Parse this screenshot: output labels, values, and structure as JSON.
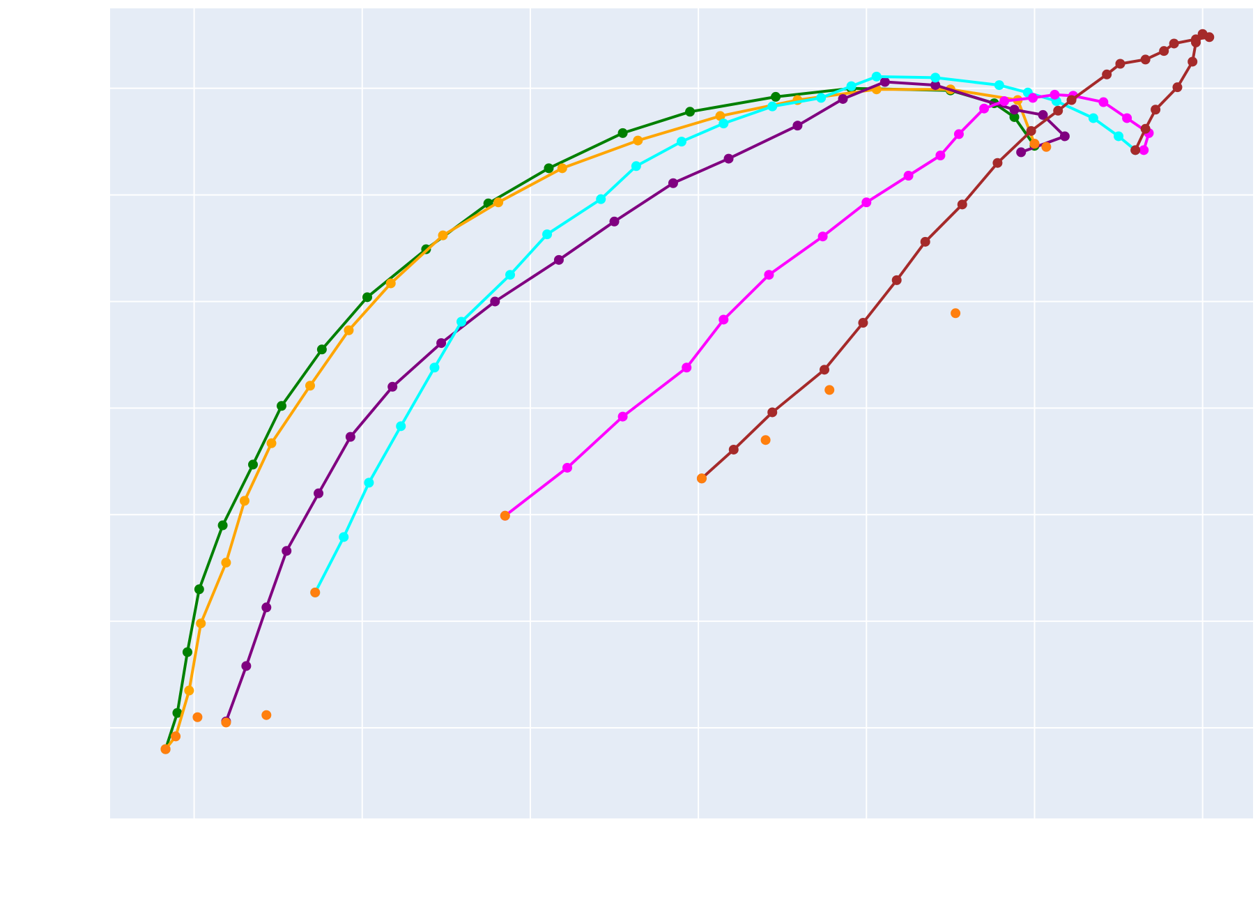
{
  "chart_data": {
    "type": "line",
    "title": "",
    "xlabel": "",
    "ylabel": "",
    "xlim": [
      -0.5,
      6.3
    ],
    "ylim": [
      -0.85,
      6.75
    ],
    "grid": true,
    "background_color": "#e5ecf6",
    "grid_color": "#ffffff",
    "series": [
      {
        "color": "#008000",
        "x": [
          -0.17,
          -0.1,
          -0.04,
          0.03,
          0.17,
          0.35,
          0.52,
          0.76,
          1.03,
          1.38,
          1.75,
          2.11,
          2.55,
          2.95,
          3.46,
          3.91,
          4.5,
          4.76,
          4.88,
          5.0
        ],
        "y": [
          -0.2,
          0.14,
          0.71,
          1.3,
          1.9,
          2.47,
          3.02,
          3.55,
          4.04,
          4.49,
          4.92,
          5.25,
          5.58,
          5.78,
          5.92,
          6.0,
          5.98,
          5.86,
          5.73,
          5.46
        ]
      },
      {
        "color": "#ffa500",
        "x": [
          -0.17,
          -0.11,
          -0.03,
          0.04,
          0.19,
          0.3,
          0.46,
          0.69,
          0.92,
          1.17,
          1.48,
          1.81,
          2.19,
          2.64,
          3.13,
          3.59,
          4.06,
          4.5,
          4.9,
          5.0
        ],
        "y": [
          -0.2,
          -0.08,
          0.35,
          0.98,
          1.55,
          2.13,
          2.67,
          3.21,
          3.73,
          4.17,
          4.62,
          4.93,
          5.25,
          5.51,
          5.74,
          5.89,
          5.99,
          5.99,
          5.89,
          5.48
        ]
      },
      {
        "color": "#800080",
        "x": [
          0.19,
          0.31,
          0.43,
          0.55,
          0.74,
          0.93,
          1.18,
          1.47,
          1.79,
          2.17,
          2.5,
          2.85,
          3.18,
          3.59,
          3.86,
          4.11,
          4.41,
          4.88,
          5.05,
          5.18,
          4.92
        ],
        "y": [
          0.06,
          0.58,
          1.13,
          1.66,
          2.2,
          2.73,
          3.2,
          3.61,
          4.0,
          4.39,
          4.75,
          5.11,
          5.34,
          5.65,
          5.9,
          6.06,
          6.03,
          5.8,
          5.75,
          5.55,
          5.4
        ]
      },
      {
        "color": "#00ffff",
        "x": [
          0.72,
          0.89,
          1.04,
          1.23,
          1.43,
          1.59,
          1.88,
          2.1,
          2.42,
          2.63,
          2.9,
          3.15,
          3.44,
          3.73,
          3.91,
          4.06,
          4.41,
          4.79,
          4.96,
          5.13,
          5.35,
          5.5,
          5.6
        ],
        "y": [
          1.27,
          1.79,
          2.3,
          2.83,
          3.38,
          3.81,
          4.25,
          4.63,
          4.96,
          5.27,
          5.5,
          5.67,
          5.83,
          5.91,
          6.02,
          6.11,
          6.1,
          6.03,
          5.96,
          5.88,
          5.72,
          5.55,
          5.42
        ]
      },
      {
        "color": "#ff00ff",
        "x": [
          1.85,
          2.22,
          2.55,
          2.93,
          3.15,
          3.42,
          3.74,
          4.0,
          4.25,
          4.44,
          4.55,
          4.7,
          4.82,
          4.99,
          5.12,
          5.23,
          5.41,
          5.55,
          5.68,
          5.65
        ],
        "y": [
          1.99,
          2.44,
          2.92,
          3.38,
          3.83,
          4.25,
          4.61,
          4.93,
          5.18,
          5.37,
          5.57,
          5.81,
          5.88,
          5.91,
          5.94,
          5.93,
          5.87,
          5.72,
          5.58,
          5.42
        ]
      },
      {
        "color": "#a52a2a",
        "x": [
          3.02,
          3.21,
          3.44,
          3.75,
          3.98,
          4.18,
          4.35,
          4.57,
          4.78,
          4.98,
          5.14,
          5.22,
          5.43,
          5.51,
          5.66,
          5.77,
          5.83,
          5.96,
          6.04,
          6.0,
          5.96,
          5.94,
          5.85,
          5.72,
          5.66,
          5.6
        ],
        "y": [
          2.34,
          2.61,
          2.96,
          3.36,
          3.8,
          4.2,
          4.56,
          4.91,
          5.3,
          5.6,
          5.79,
          5.89,
          6.13,
          6.23,
          6.27,
          6.35,
          6.42,
          6.46,
          6.48,
          6.51,
          6.43,
          6.25,
          6.01,
          5.8,
          5.62,
          5.42
        ]
      }
    ],
    "extra_points": {
      "color": "#ff7f0e",
      "x": [
        -0.17,
        -0.11,
        0.02,
        0.19,
        0.43,
        0.72,
        1.85,
        3.02,
        3.4,
        3.78,
        4.53,
        5.0,
        5.07
      ],
      "y": [
        -0.2,
        -0.08,
        0.1,
        0.05,
        0.12,
        1.27,
        1.99,
        2.34,
        2.7,
        3.17,
        3.89,
        5.48,
        5.45
      ]
    }
  }
}
